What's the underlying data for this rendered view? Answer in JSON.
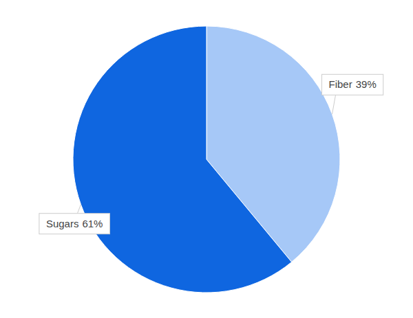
{
  "chart_data": {
    "type": "pie",
    "categories": [
      "Fiber",
      "Sugars"
    ],
    "values": [
      39,
      61
    ],
    "value_labels": [
      "39%",
      "61%"
    ],
    "colors": [
      "#a6c8f7",
      "#0f66e0"
    ],
    "data_labels": true
  }
}
